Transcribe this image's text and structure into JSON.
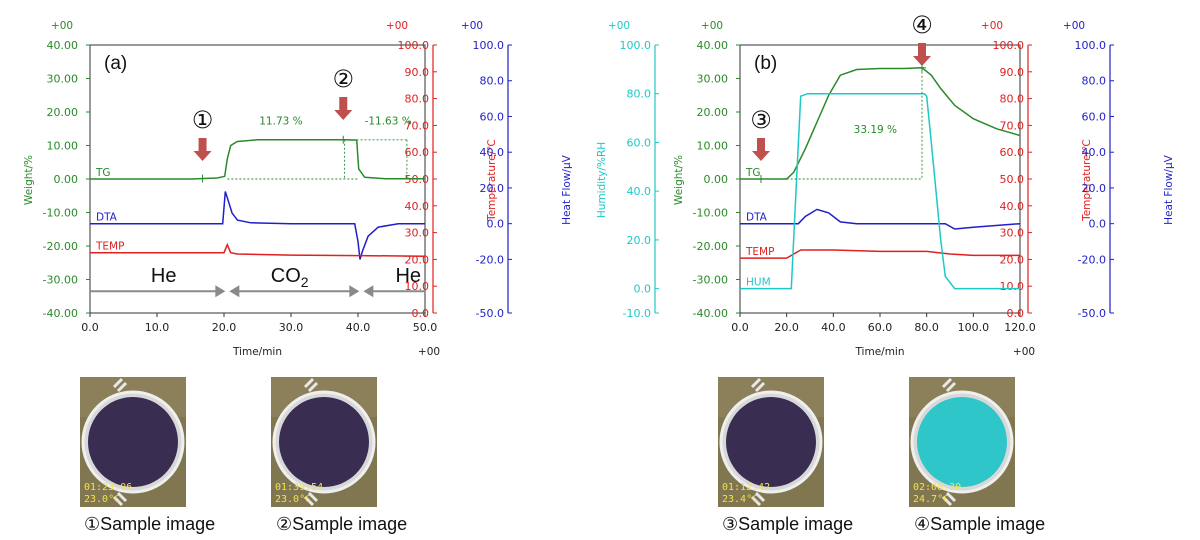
{
  "colors": {
    "tg": "#2a8a2a",
    "dta": "#1f1fc8",
    "temp": "#e02020",
    "hum": "#1fc8c8",
    "axis": "#333333",
    "arrow": "#c0504d"
  },
  "chart_data": [
    {
      "type": "line",
      "panel_label": "(a)",
      "xlabel": "Time/min",
      "x_exponent": "+00",
      "xlim": [
        0,
        50
      ],
      "x_ticks": [
        "0.0",
        "10.0",
        "20.0",
        "30.0",
        "40.0",
        "50.0"
      ],
      "axes": {
        "weight": {
          "label": "Weight/%",
          "exponent": "+00",
          "lim": [
            -40,
            40
          ],
          "ticks": [
            "-40.00",
            "-30.00",
            "-20.00",
            "-10.00",
            "0.00",
            "10.00",
            "20.00",
            "30.00",
            "40.00"
          ]
        },
        "temperature": {
          "label": "Temperature/℃",
          "exponent": "+00",
          "lim": [
            0,
            100
          ],
          "ticks": [
            "0.0",
            "10.0",
            "20.0",
            "30.0",
            "40.0",
            "50.0",
            "60.0",
            "70.0",
            "80.0",
            "90.0",
            "100.0"
          ]
        },
        "heat_flow": {
          "label": "Heat Flow/μV",
          "exponent": "+00",
          "lim": [
            -50,
            100
          ],
          "ticks": [
            "-50.0",
            "-20.0",
            "0.0",
            "20.0",
            "40.0",
            "60.0",
            "80.0",
            "100.0"
          ]
        }
      },
      "series": [
        {
          "name": "TG",
          "axis": "weight",
          "x": [
            0,
            15,
            19,
            20.1,
            20.5,
            21,
            22,
            25,
            38,
            39.8,
            40.1,
            41,
            44,
            50
          ],
          "values": [
            0,
            0,
            0.3,
            0.8,
            6,
            10,
            11.2,
            11.7,
            11.7,
            11.6,
            3,
            0.5,
            0.1,
            0.1
          ]
        },
        {
          "name": "DTA",
          "axis": "heat_flow",
          "x": [
            0,
            19.8,
            20.2,
            20.7,
            21.2,
            22,
            24,
            30,
            39.5,
            40,
            40.3,
            40.7,
            41.5,
            43,
            46,
            50
          ],
          "values": [
            0,
            0,
            18,
            12,
            6,
            2,
            0.5,
            0,
            0,
            -10,
            -20,
            -15,
            -7,
            -2,
            0,
            0
          ]
        },
        {
          "name": "TEMP",
          "axis": "temperature",
          "x": [
            0,
            20,
            20.5,
            21,
            22,
            30,
            40,
            50
          ],
          "values": [
            22.5,
            22.5,
            25.5,
            22.5,
            22,
            21.6,
            21.4,
            21.2
          ]
        }
      ],
      "annotations": [
        {
          "text": "11.73 %",
          "x": 28.5,
          "y": 17.5,
          "axis": "weight"
        },
        {
          "text": "-11.63 %",
          "x": 44.5,
          "y": 17.5,
          "axis": "weight"
        }
      ],
      "points": [
        {
          "label": "①",
          "x": 16.8
        },
        {
          "label": "②",
          "x": 37.8
        }
      ],
      "gas_regions": [
        {
          "label": "He",
          "x0": 0,
          "x1": 20.5,
          "label_x": 11
        },
        {
          "label": "CO",
          "sub": "2",
          "x0": 20.5,
          "x1": 40.5,
          "label_x": 29.8
        },
        {
          "label": "He",
          "x0": 40.5,
          "x1": 50,
          "label_x": 47.5
        }
      ]
    },
    {
      "type": "line",
      "panel_label": "(b)",
      "xlabel": "Time/min",
      "x_exponent": "+00",
      "xlim": [
        0,
        120
      ],
      "x_ticks": [
        "0.0",
        "20.0",
        "40.0",
        "60.0",
        "80.0",
        "100.0",
        "120.0"
      ],
      "axes": {
        "humidity": {
          "label": "Humidity/%RH",
          "exponent": "+00",
          "lim": [
            -10,
            100
          ],
          "ticks": [
            "-10.0",
            "0.0",
            "20.0",
            "40.0",
            "60.0",
            "80.0",
            "100.0"
          ]
        },
        "weight": {
          "label": "Weight/%",
          "exponent": "+00",
          "lim": [
            -40,
            40
          ],
          "ticks": [
            "-40.00",
            "-30.00",
            "-20.00",
            "-10.00",
            "0.00",
            "10.00",
            "20.00",
            "30.00",
            "40.00"
          ]
        },
        "temperature": {
          "label": "Temperature/℃",
          "exponent": "+00",
          "lim": [
            0,
            100
          ],
          "ticks": [
            "0.0",
            "10.0",
            "20.0",
            "30.0",
            "40.0",
            "50.0",
            "60.0",
            "70.0",
            "80.0",
            "90.0",
            "100.0"
          ]
        },
        "heat_flow": {
          "label": "Heat Flow/μV",
          "exponent": "+00",
          "lim": [
            -50,
            100
          ],
          "ticks": [
            "-50.0",
            "-20.0",
            "0.0",
            "20.0",
            "40.0",
            "60.0",
            "80.0",
            "100.0"
          ]
        }
      },
      "series": [
        {
          "name": "TG",
          "axis": "weight",
          "x": [
            0,
            20,
            23,
            28,
            33,
            38,
            43,
            50,
            60,
            70,
            78,
            82,
            86,
            92,
            100,
            110,
            120
          ],
          "values": [
            0,
            0,
            2,
            9,
            17,
            25,
            31,
            32.7,
            33,
            33,
            33.2,
            31,
            27,
            22,
            18,
            15,
            13
          ]
        },
        {
          "name": "DTA",
          "axis": "heat_flow",
          "x": [
            0,
            25,
            28,
            33,
            38,
            43,
            50,
            70,
            88,
            92,
            100,
            120
          ],
          "values": [
            0,
            0,
            4,
            8,
            6,
            1,
            0,
            0,
            0,
            -3,
            -2,
            0
          ]
        },
        {
          "name": "TEMP",
          "axis": "temperature",
          "x": [
            0,
            20,
            26,
            40,
            60,
            80,
            90,
            100,
            120
          ],
          "values": [
            20.5,
            20.5,
            23.5,
            23.5,
            23,
            23,
            22,
            21.5,
            21.5
          ]
        },
        {
          "name": "HUM",
          "axis": "humidity",
          "x": [
            0,
            22,
            24,
            26,
            29,
            79,
            80,
            82,
            86,
            88,
            92,
            120
          ],
          "values": [
            0,
            0,
            40,
            79,
            80,
            80,
            79,
            60,
            20,
            5,
            0,
            0
          ]
        }
      ],
      "annotations": [
        {
          "text": "33.19 %",
          "x": 58,
          "y": 15,
          "axis": "weight"
        }
      ],
      "points": [
        {
          "label": "③",
          "x": 9
        },
        {
          "label": "④",
          "x": 78
        }
      ]
    }
  ],
  "photos": [
    {
      "time": "01:23:06",
      "temp": "23.0°C",
      "caption": "①Sample image",
      "color": "#3a2d52"
    },
    {
      "time": "01:39:54",
      "temp": "23.0°C",
      "caption": "②Sample image",
      "color": "#3a2d52"
    },
    {
      "time": "01:12:42",
      "temp": "23.4°C",
      "caption": "③Sample image",
      "color": "#3a2d52"
    },
    {
      "time": "02:08:30",
      "temp": "24.7°C",
      "caption": "④Sample image",
      "color": "#2ec6c8"
    }
  ]
}
